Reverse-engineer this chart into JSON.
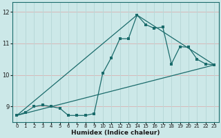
{
  "xlabel": "Humidex (Indice chaleur)",
  "background_color": "#cce8e8",
  "grid_color_h": "#d8b8b8",
  "grid_color_v": "#b8d8d8",
  "line_color": "#1a6b6b",
  "xlim": [
    -0.5,
    23.5
  ],
  "ylim": [
    8.5,
    12.3
  ],
  "yticks": [
    9,
    10,
    11,
    12
  ],
  "xticks": [
    0,
    1,
    2,
    3,
    4,
    5,
    6,
    7,
    8,
    9,
    10,
    11,
    12,
    13,
    14,
    15,
    16,
    17,
    18,
    19,
    20,
    21,
    22,
    23
  ],
  "series1_x": [
    0,
    1,
    2,
    3,
    4,
    5,
    6,
    7,
    8,
    9,
    10,
    11,
    12,
    13,
    14,
    15,
    16,
    17,
    18,
    19,
    20,
    21,
    22,
    23
  ],
  "series1_y": [
    8.72,
    8.82,
    9.0,
    9.05,
    9.0,
    8.95,
    8.72,
    8.72,
    8.72,
    8.78,
    10.05,
    10.55,
    11.15,
    11.15,
    11.9,
    11.6,
    11.48,
    11.52,
    10.35,
    10.9,
    10.88,
    10.5,
    10.35,
    10.32
  ],
  "series2_x": [
    0,
    23
  ],
  "series2_y": [
    8.72,
    10.32
  ],
  "series3_x": [
    0,
    14,
    23
  ],
  "series3_y": [
    8.72,
    11.9,
    10.32
  ]
}
